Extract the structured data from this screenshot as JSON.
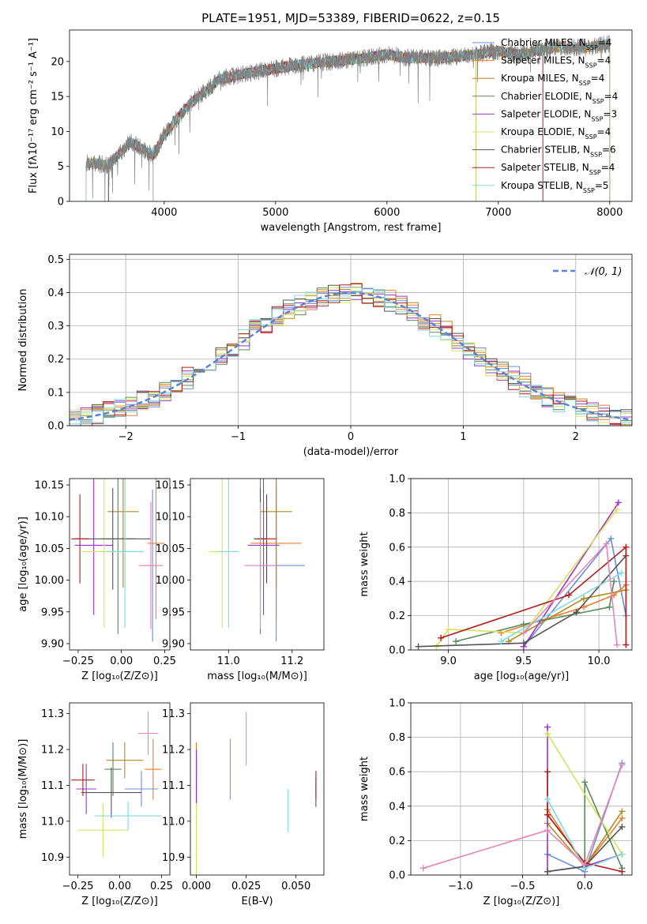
{
  "colors": {
    "mpl": [
      "#6a8fd8",
      "#ee7b2e",
      "#b5891c",
      "#5a8a5a",
      "#9c35c0",
      "#d4e35a",
      "#555555",
      "#b31b1b",
      "#7fdbe0",
      "#e686b8"
    ]
  },
  "chart_data": [
    {
      "id": "spectrum",
      "type": "line",
      "title": "PLATE=1951, MJD=53389, FIBERID=0622, z=0.15",
      "xlabel": "wavelength [Angstrom, rest frame]",
      "ylabel": "Flux [fλ10⁻¹⁷ erg cm⁻² s⁻¹ A⁻¹]",
      "xlim": [
        3150,
        8200
      ],
      "ylim": [
        0,
        24.5
      ],
      "xticks": [
        4000,
        5000,
        6000,
        7000,
        8000
      ],
      "yticks": [
        0,
        5,
        10,
        15,
        20
      ],
      "legend": "top-right",
      "data_anchors": {
        "wavelength": [
          3300,
          3500,
          3700,
          3900,
          4000,
          4200,
          4500,
          4800,
          5000,
          5200,
          5500,
          5800,
          6000,
          6200,
          6500,
          6800,
          7000,
          7200,
          7500,
          7800,
          8000
        ],
        "flux": [
          5.5,
          5.2,
          8.5,
          6.5,
          9.5,
          13.5,
          17.5,
          18.5,
          19.0,
          19.5,
          20.0,
          20.5,
          21.0,
          20.5,
          20.5,
          21.0,
          21.5,
          21.0,
          22.0,
          22.0,
          22.5
        ]
      },
      "series": [
        {
          "name": "Chabrier MILES, N<sub>SSP</sub>=4",
          "xmin": 3300,
          "xmax": 8000,
          "label_base": "Chabrier MILES, N",
          "label_sub": "SSP",
          "label_tail": "=4"
        },
        {
          "name": "Salpeter MILES, N<sub>SSP</sub>=4",
          "xmin": 3300,
          "xmax": 8000,
          "label_base": "Salpeter MILES, N",
          "label_sub": "SSP",
          "label_tail": "=4"
        },
        {
          "name": "Kroupa MILES, N<sub>SSP</sub>=4",
          "xmin": 3300,
          "xmax": 8000,
          "label_base": "Kroupa MILES, N",
          "label_sub": "SSP",
          "label_tail": "=4"
        },
        {
          "name": "Chabrier ELODIE, N<sub>SSP</sub>=4",
          "xmin": 3900,
          "xmax": 6800,
          "label_base": "Chabrier ELODIE, N",
          "label_sub": "SSP",
          "label_tail": "=4"
        },
        {
          "name": "Salpeter ELODIE, N<sub>SSP</sub>=3",
          "xmin": 3900,
          "xmax": 6800,
          "label_base": "Salpeter ELODIE, N",
          "label_sub": "SSP",
          "label_tail": "=3"
        },
        {
          "name": "Kroupa ELODIE, N<sub>SSP</sub>=4",
          "xmin": 3900,
          "xmax": 6800,
          "label_base": "Kroupa ELODIE, N",
          "label_sub": "SSP",
          "label_tail": "=4"
        },
        {
          "name": "Chabrier STELIB, N<sub>SSP</sub>=6",
          "xmin": 3500,
          "xmax": 7400,
          "label_base": "Chabrier STELIB, N",
          "label_sub": "SSP",
          "label_tail": "=6"
        },
        {
          "name": "Salpeter STELIB, N<sub>SSP</sub>=4",
          "xmin": 3500,
          "xmax": 7400,
          "label_base": "Salpeter STELIB, N",
          "label_sub": "SSP",
          "label_tail": "=4"
        },
        {
          "name": "Kroupa STELIB, N<sub>SSP</sub>=5",
          "xmin": 3300,
          "xmax": 8000,
          "label_base": "Kroupa STELIB, N",
          "label_sub": "SSP",
          "label_tail": "=5"
        }
      ],
      "observed": {
        "xmin": 3300,
        "xmax": 8000,
        "color": "#808080"
      }
    },
    {
      "id": "residuals",
      "type": "histogram",
      "xlabel": "(data-model)/error",
      "ylabel": "Normed distribution",
      "xlim": [
        -2.5,
        2.5
      ],
      "ylim": [
        0,
        0.515
      ],
      "xticks": [
        -2,
        -1,
        0,
        1,
        2
      ],
      "yticks": [
        0.0,
        0.1,
        0.2,
        0.3,
        0.4,
        0.5
      ],
      "grid": true,
      "legend": "top-right",
      "reference": {
        "label": "𝒩(0, 1)",
        "mean": 0,
        "sigma": 1
      },
      "bin_width": 0.1
    },
    {
      "id": "age-vs-Z",
      "type": "errorbar",
      "xlabel": "Z [log₁₀(Z/Z⊙)]",
      "ylabel": "age  [log₁₀(age/yr)]",
      "xlim": [
        -0.3,
        0.28
      ],
      "ylim": [
        9.89,
        10.16
      ],
      "xticks": [
        -0.25,
        0.0,
        0.25
      ],
      "xtick_labels": [
        "−0.25",
        "0.00",
        "0.25"
      ],
      "yticks": [
        9.9,
        9.95,
        10.0,
        10.05,
        10.1,
        10.15
      ],
      "points": [
        {
          "x": 0.18,
          "y": 10.023,
          "xerr": 0.06,
          "yerr": 0.12
        },
        {
          "x": 0.2,
          "y": 10.058,
          "xerr": 0.05,
          "yerr": 0.12
        },
        {
          "x": 0.01,
          "y": 10.108,
          "xerr": 0.09,
          "yerr": 0.12
        },
        {
          "x": -0.02,
          "y": 10.065,
          "xerr": 0.1,
          "yerr": 0.15
        },
        {
          "x": -0.16,
          "y": 10.055,
          "xerr": 0.11,
          "yerr": 0.11
        },
        {
          "x": -0.1,
          "y": 10.045,
          "xerr": 0.13,
          "yerr": 0.12
        },
        {
          "x": -0.05,
          "y": 10.065,
          "xerr": 0.22,
          "yerr": 0.08
        },
        {
          "x": -0.24,
          "y": 10.065,
          "xerr": 0.05,
          "yerr": 0.07
        },
        {
          "x": 0.02,
          "y": 10.045,
          "xerr": 0.11,
          "yerr": 0.12
        },
        {
          "x": 0.17,
          "y": 10.023,
          "xerr": 0.07,
          "yerr": 0.1
        }
      ]
    },
    {
      "id": "age-vs-mass",
      "type": "errorbar",
      "xlabel": "mass [log₁₀(M/M⊙)]",
      "ylabel": "",
      "xlim": [
        10.88,
        11.3
      ],
      "ylim": [
        9.89,
        10.16
      ],
      "xticks": [
        11.0,
        11.2
      ],
      "yticks": [
        9.9,
        9.95,
        10.0,
        10.05,
        10.1,
        10.15
      ],
      "points": [
        {
          "x": 11.15,
          "y": 10.023,
          "xerr": 0.09,
          "yerr": 0.12
        },
        {
          "x": 11.15,
          "y": 10.058,
          "xerr": 0.08,
          "yerr": 0.12
        },
        {
          "x": 11.15,
          "y": 10.108,
          "xerr": 0.05,
          "yerr": 0.12
        },
        {
          "x": 11.1,
          "y": 10.065,
          "xerr": 0.02,
          "yerr": 0.15
        },
        {
          "x": 11.11,
          "y": 10.055,
          "xerr": 0.05,
          "yerr": 0.11
        },
        {
          "x": 10.98,
          "y": 10.045,
          "xerr": 0.04,
          "yerr": 0.12
        },
        {
          "x": 11.1,
          "y": 10.065,
          "xerr": 0.02,
          "yerr": 0.08
        },
        {
          "x": 11.12,
          "y": 10.065,
          "xerr": 0.03,
          "yerr": 0.07
        },
        {
          "x": 11.0,
          "y": 10.045,
          "xerr": 0.03,
          "yerr": 0.12
        },
        {
          "x": 11.1,
          "y": 10.023,
          "xerr": 0.05,
          "yerr": 0.1
        }
      ]
    },
    {
      "id": "weight-vs-age",
      "type": "line",
      "xlabel": "age  [log₁₀(age/yr)]",
      "ylabel": "mass weight",
      "xlim": [
        8.75,
        10.22
      ],
      "ylim": [
        0,
        1.0
      ],
      "xticks": [
        9.0,
        9.5,
        10.0
      ],
      "yticks": [
        0.0,
        0.2,
        0.4,
        0.6,
        0.8,
        1.0
      ],
      "grid": true,
      "series": [
        {
          "x": [
            9.5,
            10.08,
            10.18
          ],
          "y": [
            0.02,
            0.65,
            0.2
          ]
        },
        {
          "x": [
            9.35,
            9.9,
            10.1,
            10.18
          ],
          "y": [
            0.1,
            0.25,
            0.32,
            0.38
          ]
        },
        {
          "x": [
            9.4,
            9.9,
            10.18
          ],
          "y": [
            0.05,
            0.3,
            0.35
          ]
        },
        {
          "x": [
            9.05,
            9.5,
            10.07,
            10.1
          ],
          "y": [
            0.05,
            0.15,
            0.25,
            0.4
          ]
        },
        {
          "x": [
            9.5,
            10.13
          ],
          "y": [
            0.02,
            0.86
          ]
        },
        {
          "x": [
            8.92,
            9.0,
            9.5,
            10.12
          ],
          "y": [
            0.02,
            0.12,
            0.1,
            0.82
          ]
        },
        {
          "x": [
            8.8,
            9.5,
            9.85,
            10.18
          ],
          "y": [
            0.02,
            0.04,
            0.22,
            0.55
          ]
        },
        {
          "x": [
            8.95,
            9.8,
            10.18,
            10.18
          ],
          "y": [
            0.07,
            0.32,
            0.6,
            0.03
          ]
        },
        {
          "x": [
            9.35,
            10.15
          ],
          "y": [
            0.05,
            0.45
          ]
        },
        {
          "x": [
            9.5,
            10.05,
            10.12
          ],
          "y": [
            0.1,
            0.62,
            0.03
          ]
        }
      ]
    },
    {
      "id": "mass-vs-Z",
      "type": "errorbar",
      "xlabel": "Z [log₁₀(Z/Z⊙)]",
      "ylabel": "mass [log₁₀(M/M⊙)]",
      "xlim": [
        -0.3,
        0.3
      ],
      "ylim": [
        10.85,
        11.33
      ],
      "xticks": [
        -0.25,
        0.0,
        0.25
      ],
      "xtick_labels": [
        "−0.25",
        "0.00",
        "0.25"
      ],
      "yticks": [
        10.9,
        11.0,
        11.1,
        11.2,
        11.3
      ],
      "points": [
        {
          "x": 0.13,
          "y": 11.09,
          "xerr": 0.1,
          "yerr": 0.05
        },
        {
          "x": 0.2,
          "y": 11.145,
          "xerr": 0.05,
          "yerr": 0.085
        },
        {
          "x": 0.03,
          "y": 11.17,
          "xerr": 0.11,
          "yerr": 0.05
        },
        {
          "x": -0.04,
          "y": 11.145,
          "xerr": 0.05,
          "yerr": 0.075
        },
        {
          "x": -0.2,
          "y": 11.09,
          "xerr": 0.06,
          "yerr": 0.07
        },
        {
          "x": -0.1,
          "y": 10.975,
          "xerr": 0.15,
          "yerr": 0.075
        },
        {
          "x": -0.05,
          "y": 11.08,
          "xerr": 0.18,
          "yerr": 0.07
        },
        {
          "x": -0.22,
          "y": 11.115,
          "xerr": 0.07,
          "yerr": 0.045
        },
        {
          "x": 0.05,
          "y": 11.015,
          "xerr": 0.2,
          "yerr": 0.04
        },
        {
          "x": 0.17,
          "y": 11.245,
          "xerr": 0.06,
          "yerr": 0.06
        }
      ]
    },
    {
      "id": "mass-vs-ebv",
      "type": "errorbar",
      "xlabel": "E(B-V)",
      "ylabel": "",
      "xlim": [
        -0.003,
        0.064
      ],
      "ylim": [
        10.85,
        11.33
      ],
      "xticks": [
        0.0,
        0.025,
        0.05
      ],
      "xtick_labels": [
        "0.000",
        "0.025",
        "0.050"
      ],
      "yticks": [
        10.9,
        11.0,
        11.1,
        11.2,
        11.3
      ],
      "points": [
        {
          "x": 0.0,
          "y": 11.1,
          "xerr": 0,
          "yerr": 0.1
        },
        {
          "x": 0.017,
          "y": 11.145,
          "xerr": 0,
          "yerr": 0.085
        },
        {
          "x": 0.0,
          "y": 11.17,
          "xerr": 0,
          "yerr": 0.05
        },
        {
          "x": 0.0,
          "y": 11.12,
          "xerr": 0,
          "yerr": 0.06
        },
        {
          "x": 0.0,
          "y": 11.12,
          "xerr": 0,
          "yerr": 0.08
        },
        {
          "x": 0.0,
          "y": 10.95,
          "xerr": 0,
          "yerr": 0.1
        },
        {
          "x": 0.06,
          "y": 11.08,
          "xerr": 0,
          "yerr": 0.04
        },
        {
          "x": 0.06,
          "y": 11.1,
          "xerr": 0,
          "yerr": 0.04
        },
        {
          "x": 0.046,
          "y": 11.03,
          "xerr": 0,
          "yerr": 0.06
        },
        {
          "x": 0.025,
          "y": 11.23,
          "xerr": 0,
          "yerr": 0.075
        }
      ]
    },
    {
      "id": "weight-vs-Z",
      "type": "line",
      "xlabel": "Z [log₁₀(Z/Z⊙)]",
      "ylabel": "mass weight",
      "xlim": [
        -1.4,
        0.38
      ],
      "ylim": [
        0,
        1.0
      ],
      "xticks": [
        -1.0,
        -0.5,
        0.0
      ],
      "xtick_labels": [
        "−1.0",
        "−0.5",
        "0.0"
      ],
      "yticks": [
        0.0,
        0.2,
        0.4,
        0.6,
        0.8,
        1.0
      ],
      "grid": true,
      "series": [
        {
          "x": [
            -0.3,
            0.0,
            0.3
          ],
          "y": [
            0.12,
            0.02,
            0.65
          ]
        },
        {
          "x": [
            -0.3,
            0.0,
            0.3
          ],
          "y": [
            0.38,
            0.05,
            0.33
          ]
        },
        {
          "x": [
            -0.3,
            0.0,
            0.3
          ],
          "y": [
            0.3,
            0.05,
            0.37
          ]
        },
        {
          "x": [
            -0.3,
            0.0,
            0.0,
            0.3
          ],
          "y": [
            0.35,
            0.07,
            0.54,
            0.04
          ]
        },
        {
          "x": [
            -0.3,
            -0.3,
            0.0,
            0.3
          ],
          "y": [
            0.86,
            0.02,
            0.05,
            0.12
          ]
        },
        {
          "x": [
            -0.3,
            0.3
          ],
          "y": [
            0.82,
            0.12
          ]
        },
        {
          "x": [
            -0.3,
            0.0,
            0.3
          ],
          "y": [
            0.02,
            0.05,
            0.28
          ]
        },
        {
          "x": [
            -0.3,
            -0.3,
            0.0,
            0.3
          ],
          "y": [
            0.6,
            0.35,
            0.07,
            0.02
          ]
        },
        {
          "x": [
            -0.3,
            0.0,
            0.3
          ],
          "y": [
            0.44,
            0.04,
            0.12
          ]
        },
        {
          "x": [
            -1.3,
            -0.3,
            0.0,
            0.3
          ],
          "y": [
            0.04,
            0.26,
            0.06,
            0.64
          ]
        }
      ]
    }
  ]
}
